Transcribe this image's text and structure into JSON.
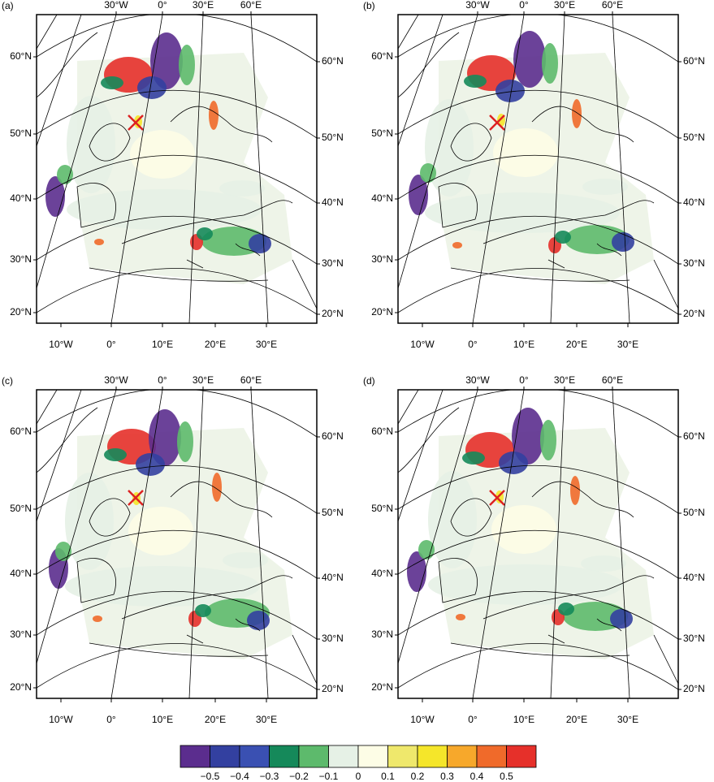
{
  "panels": [
    {
      "label": "(a)"
    },
    {
      "label": "(b)"
    },
    {
      "label": "(c)"
    },
    {
      "label": "(d)"
    }
  ],
  "map_axes": {
    "top": [
      "30°W",
      "0°",
      "30°E",
      "60°E"
    ],
    "left": [
      "60°N",
      "50°N",
      "40°N",
      "30°N",
      "20°N"
    ],
    "right": [
      "60°N",
      "50°N",
      "40°N",
      "30°N",
      "20°N"
    ],
    "bottom": [
      "10°W",
      "0°",
      "10°E",
      "20°E",
      "30°E"
    ]
  },
  "colorbar": {
    "colors": [
      "#5b2d8e",
      "#3340a0",
      "#3a50b2",
      "#15895a",
      "#5dba6c",
      "#e6f1e6",
      "#fdfde6",
      "#efe86c",
      "#f5e62a",
      "#f7a82b",
      "#f06a2a",
      "#e6302a"
    ],
    "ticks": [
      {
        "value": -0.5,
        "label": "−0.5"
      },
      {
        "value": -0.4,
        "label": "−0.4"
      },
      {
        "value": -0.3,
        "label": "−0.3"
      },
      {
        "value": -0.2,
        "label": "−0.2"
      },
      {
        "value": -0.1,
        "label": "−0.1"
      },
      0,
      0.1,
      0.2,
      0.3,
      0.4,
      0.5
    ]
  }
}
